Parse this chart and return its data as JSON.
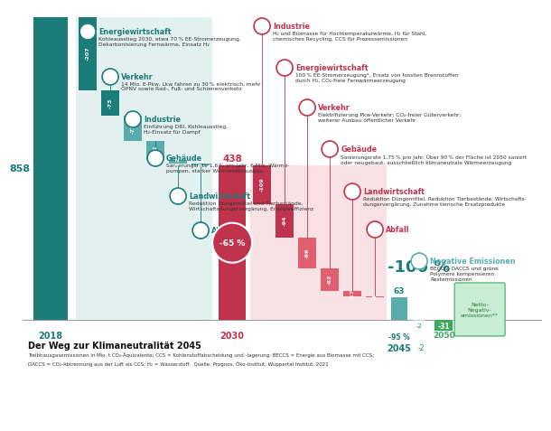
{
  "title": "Der Weg zur Klimaneutralität 2045",
  "subtitle_line1": "Treibhausgasemissionen in Mio. t CO₂-Äquivalente; CCS = Kohlenstoffabscheidung und -lagerung; BECCS = Energie aus Biomasse mit CCS;",
  "subtitle_line2": "DACCS = CO₂-Abtrennung aus der Luft als CCS; H₂ = Wasserstoff.  Quelle: Prognos, Öko-Institut, Wuppertal Institut, 2021",
  "teal_dark": "#1b7c7a",
  "teal_mid": "#5aacac",
  "teal_light": "#b0d4d4",
  "red_dark": "#c0334d",
  "red_mid": "#e06070",
  "red_light": "#f0b8be",
  "green_bar": "#3aaa5a",
  "green_light": "#c8ecd4",
  "val_2018": 858,
  "reductions_2030": [
    -207,
    -73,
    -72,
    -52,
    -12,
    -5
  ],
  "val_2030": 438,
  "reductions_2045": [
    -109,
    -94,
    -89,
    -62,
    -17,
    -3
  ],
  "val_2045": 63,
  "val_neg": -2,
  "val_2050": -31,
  "left_titles": [
    "Energiewirtschaft",
    "Verkehr",
    "Industrie",
    "Gebäude",
    "Landwirtschaft",
    "Abfall"
  ],
  "left_descs": [
    "Kohleausstieg 2030, etwa 70 % EE-Stromerzeugung,\nDekarbonisierung Fernwärme, Einsatz H₂",
    "14 Mio. E-Pkw, Lkw fahren zu 30 % elektrisch, mehr\nÖPNV sowie Rad-, Fuß- und Schienenverkehr",
    "Einführung DRI, Kohleausstieg,\nH₂-Einsatz für Dampf",
    "Sanierungsrate 1,6 % pro Jahr, 6 Mio. Wärme-\npumpen, starker Wärmenetzausbau",
    "Reduktion Düngemittel und Tierbestände,\nWirtschaftsdungervergärung, Energieeffizienz",
    ""
  ],
  "right_titles": [
    "Industrie",
    "Energiewirtschaft",
    "Verkehr",
    "Gebäude",
    "Landwirtschaft",
    "Abfall",
    "Negative Emissionen"
  ],
  "right_descs": [
    "H₂ und Biomasse für Hochtemperaturwärme, H₂ für Stahl,\nchemisches Recycling, CCS für Prozessemissionen",
    "100 % EE-Stromerzeugung*, Ersatz von fossilen Brennstoffen\ndurch H₂, CO₂-freie Fernwärmeerzeugung",
    "Elektrifizierung Pkw-Verkehr; CO₂-freier Güterverkehr;\nweiterer Ausbau öffentlicher Verkehr",
    "Sanierungsrate 1,75 % pro Jahr. Über 90 % der Fläche ist 2050 saniert\noder neugebaut, ausschließlich klimaneutrale Wärmeerzeugung",
    "Reduktion Düngemittel, Reduktion Tierbestände, Wirtschafts-\ndungervergärung, Zunahme tierische Ersatzprodukte",
    "",
    "BECCS, DACCS und grüne\nPolymere kompensieren\nRestemissionen"
  ]
}
